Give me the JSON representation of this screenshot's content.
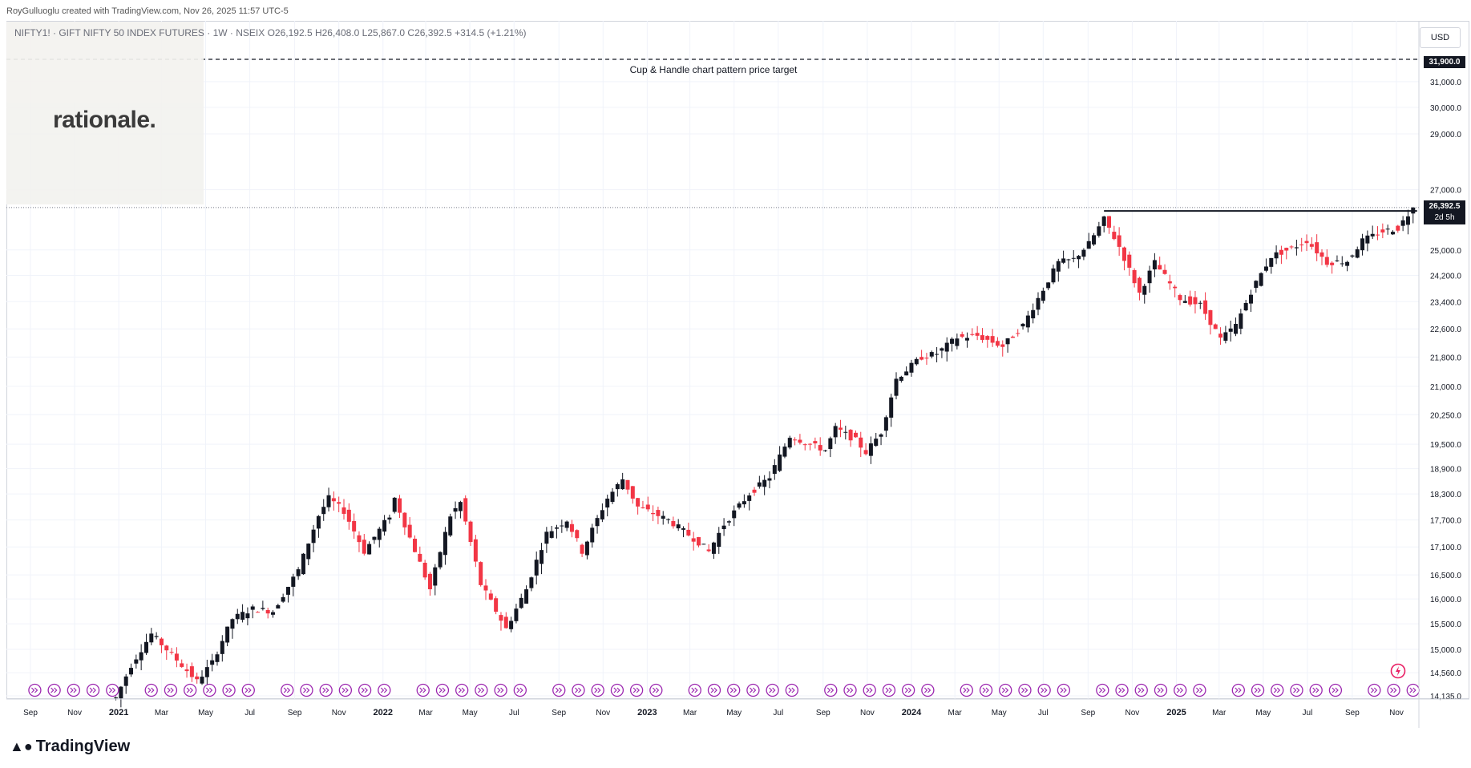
{
  "header": {
    "attribution": "RoyGulluoglu created with TradingView.com, Nov 26, 2025 11:57 UTC-5",
    "legend": "NIFTY1! · GIFT NIFTY 50 INDEX FUTURES · 1W · NSEIX  O26,192.5  H26,408.0  L25,867.0  C26,392.5  +314.5 (+1.21%)"
  },
  "logo": {
    "text": "rationale."
  },
  "annotation": {
    "text": "Cup & Handle chart pattern price target"
  },
  "price_axis": {
    "currency": "USD",
    "target_label": "31,900.0",
    "last_price": "26,392.5",
    "countdown": "2d 5h"
  },
  "footer": {
    "brand": "TradingView"
  },
  "colors": {
    "up": "#131722",
    "down": "#f23645",
    "grid": "#f0f3fa",
    "event_icon": "#9c27b0"
  },
  "icons": [
    "event-arrow-icon",
    "alert-flash-icon",
    "tradingview-logo-icon"
  ],
  "chart_data": {
    "type": "candlestick",
    "title": "",
    "symbol": "NIFTY1!",
    "timeframe": "1W",
    "y_scale": "log",
    "ylim": [
      13900,
      32200
    ],
    "y_ticks": [
      {
        "v": 31900,
        "label": "31,900.0"
      },
      {
        "v": 31000,
        "label": "31,000.0"
      },
      {
        "v": 30000,
        "label": "30,000.0"
      },
      {
        "v": 29000,
        "label": "29,000.0"
      },
      {
        "v": 27000,
        "label": "27,000.0"
      },
      {
        "v": 25000,
        "label": "25,000.0"
      },
      {
        "v": 24200,
        "label": "24,200.0"
      },
      {
        "v": 23400,
        "label": "23,400.0"
      },
      {
        "v": 22600,
        "label": "22,600.0"
      },
      {
        "v": 21800,
        "label": "21,800.0"
      },
      {
        "v": 21000,
        "label": "21,000.0"
      },
      {
        "v": 20250,
        "label": "20,250.0"
      },
      {
        "v": 19500,
        "label": "19,500.0"
      },
      {
        "v": 18900,
        "label": "18,900.0"
      },
      {
        "v": 18300,
        "label": "18,300.0"
      },
      {
        "v": 17700,
        "label": "17,700.0"
      },
      {
        "v": 17100,
        "label": "17,100.0"
      },
      {
        "v": 16500,
        "label": "16,500.0"
      },
      {
        "v": 16000,
        "label": "16,000.0"
      },
      {
        "v": 15500,
        "label": "15,500.0"
      },
      {
        "v": 15000,
        "label": "15,000.0"
      },
      {
        "v": 14560,
        "label": "14,560.0"
      },
      {
        "v": 14135,
        "label": "14,135.0"
      }
    ],
    "x_range": [
      "2020-09-01",
      "2025-12-24"
    ],
    "x_ticks": [
      {
        "d": "2020-09-01",
        "label": "Sep"
      },
      {
        "d": "2020-11-01",
        "label": "Nov"
      },
      {
        "d": "2021-01-01",
        "label": "2021"
      },
      {
        "d": "2021-03-01",
        "label": "Mar"
      },
      {
        "d": "2021-05-01",
        "label": "May"
      },
      {
        "d": "2021-07-01",
        "label": "Jul"
      },
      {
        "d": "2021-09-01",
        "label": "Sep"
      },
      {
        "d": "2021-11-01",
        "label": "Nov"
      },
      {
        "d": "2022-01-01",
        "label": "2022"
      },
      {
        "d": "2022-03-01",
        "label": "Mar"
      },
      {
        "d": "2022-05-01",
        "label": "May"
      },
      {
        "d": "2022-07-01",
        "label": "Jul"
      },
      {
        "d": "2022-09-01",
        "label": "Sep"
      },
      {
        "d": "2022-11-01",
        "label": "Nov"
      },
      {
        "d": "2023-01-01",
        "label": "2023"
      },
      {
        "d": "2023-03-01",
        "label": "Mar"
      },
      {
        "d": "2023-05-01",
        "label": "May"
      },
      {
        "d": "2023-07-01",
        "label": "Jul"
      },
      {
        "d": "2023-09-01",
        "label": "Sep"
      },
      {
        "d": "2023-11-01",
        "label": "Nov"
      },
      {
        "d": "2024-01-01",
        "label": "2024"
      },
      {
        "d": "2024-03-01",
        "label": "Mar"
      },
      {
        "d": "2024-05-01",
        "label": "May"
      },
      {
        "d": "2024-07-01",
        "label": "Jul"
      },
      {
        "d": "2024-09-01",
        "label": "Sep"
      },
      {
        "d": "2024-11-01",
        "label": "Nov"
      },
      {
        "d": "2025-01-01",
        "label": "2025"
      },
      {
        "d": "2025-03-01",
        "label": "Mar"
      },
      {
        "d": "2025-05-01",
        "label": "May"
      },
      {
        "d": "2025-07-01",
        "label": "Jul"
      },
      {
        "d": "2025-09-01",
        "label": "Sep"
      },
      {
        "d": "2025-11-01",
        "label": "Nov"
      }
    ],
    "target_level": 31900,
    "resistance_level": 26277,
    "resistance_start": "2024-09-23",
    "last_close": 26392.5,
    "path": [
      [
        "2020-12-28",
        14100
      ],
      [
        "2021-01-18",
        14700
      ],
      [
        "2021-02-15",
        15300
      ],
      [
        "2021-03-15",
        14900
      ],
      [
        "2021-04-19",
        14400
      ],
      [
        "2021-05-10",
        14750
      ],
      [
        "2021-06-07",
        15600
      ],
      [
        "2021-07-05",
        15800
      ],
      [
        "2021-08-02",
        15750
      ],
      [
        "2021-09-06",
        16600
      ],
      [
        "2021-10-04",
        17800
      ],
      [
        "2021-10-18",
        18200
      ],
      [
        "2021-11-08",
        17900
      ],
      [
        "2021-12-06",
        17000
      ],
      [
        "2022-01-10",
        17800
      ],
      [
        "2022-01-17",
        18200
      ],
      [
        "2022-02-07",
        17300
      ],
      [
        "2022-03-07",
        16200
      ],
      [
        "2022-04-04",
        17800
      ],
      [
        "2022-04-18",
        18100
      ],
      [
        "2022-05-16",
        16300
      ],
      [
        "2022-06-20",
        15400
      ],
      [
        "2022-07-18",
        16200
      ],
      [
        "2022-08-15",
        17400
      ],
      [
        "2022-09-12",
        17700
      ],
      [
        "2022-10-03",
        17000
      ],
      [
        "2022-11-07",
        18200
      ],
      [
        "2022-11-28",
        18650
      ],
      [
        "2022-12-19",
        18000
      ],
      [
        "2023-01-30",
        17700
      ],
      [
        "2023-03-13",
        17200
      ],
      [
        "2023-03-27",
        17000
      ],
      [
        "2023-04-17",
        17600
      ],
      [
        "2023-05-22",
        18300
      ],
      [
        "2023-06-19",
        18700
      ],
      [
        "2023-07-17",
        19700
      ],
      [
        "2023-08-14",
        19500
      ],
      [
        "2023-09-04",
        19350
      ],
      [
        "2023-09-18",
        19900
      ],
      [
        "2023-10-16",
        19600
      ],
      [
        "2023-10-30",
        19300
      ],
      [
        "2023-11-20",
        19800
      ],
      [
        "2023-12-11",
        21200
      ],
      [
        "2024-01-15",
        21800
      ],
      [
        "2024-02-05",
        21900
      ],
      [
        "2024-03-04",
        22350
      ],
      [
        "2024-04-01",
        22400
      ],
      [
        "2024-05-06",
        22100
      ],
      [
        "2024-06-03",
        22700
      ],
      [
        "2024-06-24",
        23500
      ],
      [
        "2024-07-22",
        24600
      ],
      [
        "2024-08-12",
        24700
      ],
      [
        "2024-09-02",
        25200
      ],
      [
        "2024-09-23",
        26000
      ],
      [
        "2024-10-14",
        25100
      ],
      [
        "2024-11-11",
        23650
      ],
      [
        "2024-12-02",
        24600
      ],
      [
        "2025-01-06",
        23500
      ],
      [
        "2025-02-03",
        23300
      ],
      [
        "2025-03-03",
        22300
      ],
      [
        "2025-03-24",
        22700
      ],
      [
        "2025-04-14",
        23700
      ],
      [
        "2025-05-12",
        24800
      ],
      [
        "2025-06-09",
        25050
      ],
      [
        "2025-06-30",
        25300
      ],
      [
        "2025-07-28",
        24600
      ],
      [
        "2025-08-25",
        24650
      ],
      [
        "2025-09-15",
        25300
      ],
      [
        "2025-10-13",
        25600
      ],
      [
        "2025-11-03",
        25700
      ],
      [
        "2025-11-24",
        26392.5
      ]
    ],
    "event_markers": {
      "count": 72,
      "start": "2020-09-07",
      "end": "2025-11-24",
      "omitted_weeks": [
        5,
        12,
        19,
        26,
        33,
        40,
        47,
        54,
        61,
        68
      ]
    }
  }
}
